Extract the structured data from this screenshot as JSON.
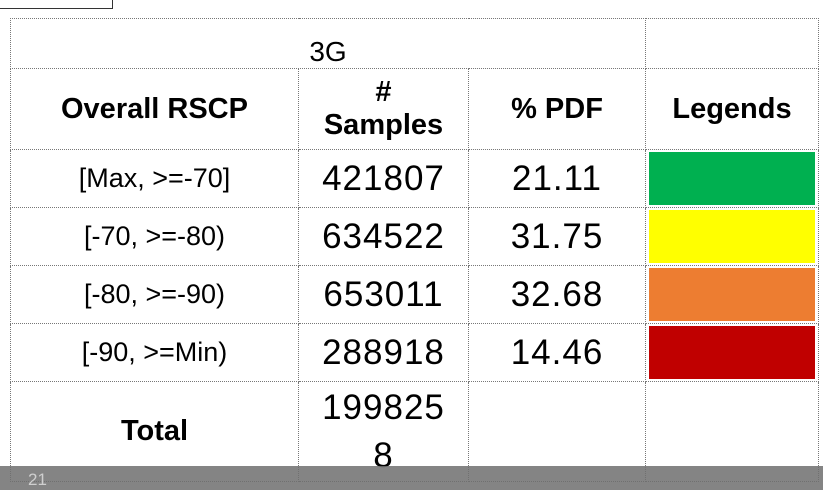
{
  "title": "3G",
  "table": {
    "header": [
      "Overall RSCP",
      "# Samples",
      "% PDF",
      "Legends"
    ],
    "rows": [
      [
        "[Max, >=-70]",
        421807,
        21.11
      ],
      [
        "[-70, >=-80)",
        634522,
        31.75
      ],
      [
        "[-80, >=-90)",
        653011,
        32.68
      ],
      [
        "[-90, >=Min)",
        288918,
        14.46
      ]
    ],
    "legend_colors": [
      "#00b050",
      "#ffff00",
      "#ed7d31",
      "#c00000"
    ],
    "total": {
      "label": "Total",
      "samples": 1998258
    }
  },
  "page_number": 21
}
